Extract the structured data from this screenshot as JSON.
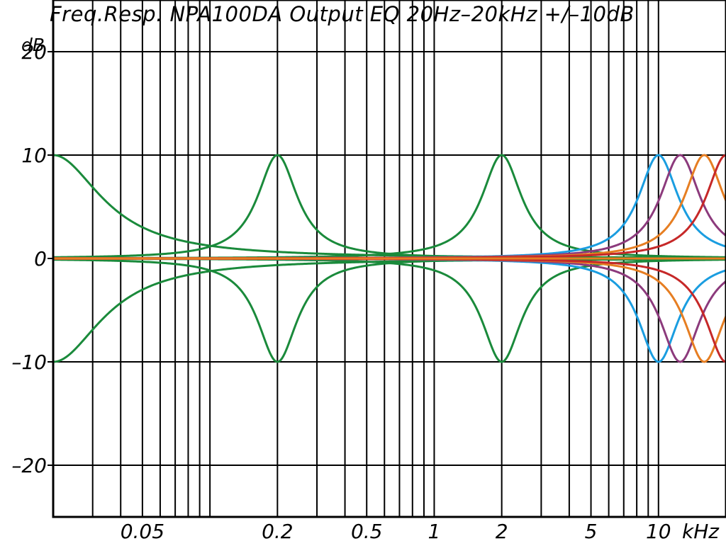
{
  "chart_data": {
    "type": "line",
    "title": "Freq.Resp. NPA100DA Output EQ 20Hz–20kHz +/–10dB",
    "ylabel": "dB",
    "xunit": "kHz",
    "x_scale": "log",
    "xlim": [
      0.02,
      20
    ],
    "ylim": [
      -25,
      25
    ],
    "grid": true,
    "y_ticks": [
      {
        "value": 20,
        "label": "20"
      },
      {
        "value": 10,
        "label": "10"
      },
      {
        "value": 0,
        "label": "0"
      },
      {
        "value": -10,
        "label": "–10"
      },
      {
        "value": -20,
        "label": "–20"
      }
    ],
    "x_ticks": [
      {
        "value": 0.05,
        "label": "0.05"
      },
      {
        "value": 0.2,
        "label": "0.2"
      },
      {
        "value": 0.5,
        "label": "0.5"
      },
      {
        "value": 1,
        "label": "1"
      },
      {
        "value": 2,
        "label": "2"
      },
      {
        "value": 5,
        "label": "5"
      },
      {
        "value": 10,
        "label": "10"
      }
    ],
    "colors": {
      "grid": "#000000",
      "green": "#1a8a3b",
      "blue": "#1a9de0",
      "purple": "#8c3a7c",
      "orange": "#e67e22",
      "red": "#c62828"
    },
    "series": [
      {
        "filter": "low-shelf",
        "fc_khz": 0.02,
        "gain_db": 10,
        "color": "#1a8a3b"
      },
      {
        "filter": "low-shelf",
        "fc_khz": 0.02,
        "gain_db": -10,
        "color": "#1a8a3b"
      },
      {
        "filter": "peak",
        "fc_khz": 0.2,
        "gain_db": 10,
        "color": "#1a8a3b"
      },
      {
        "filter": "peak",
        "fc_khz": 0.2,
        "gain_db": -10,
        "color": "#1a8a3b"
      },
      {
        "filter": "peak",
        "fc_khz": 2,
        "gain_db": 10,
        "color": "#1a8a3b"
      },
      {
        "filter": "peak",
        "fc_khz": 2,
        "gain_db": -10,
        "color": "#1a8a3b"
      },
      {
        "filter": "peak",
        "fc_khz": 10,
        "gain_db": 10,
        "color": "#1a9de0"
      },
      {
        "filter": "peak",
        "fc_khz": 10,
        "gain_db": -10,
        "color": "#1a9de0"
      },
      {
        "filter": "peak",
        "fc_khz": 12.5,
        "gain_db": 10,
        "color": "#8c3a7c"
      },
      {
        "filter": "peak",
        "fc_khz": 12.5,
        "gain_db": -10,
        "color": "#8c3a7c"
      },
      {
        "filter": "peak",
        "fc_khz": 16,
        "gain_db": 10,
        "color": "#e67e22"
      },
      {
        "filter": "peak",
        "fc_khz": 16,
        "gain_db": -10,
        "color": "#e67e22"
      },
      {
        "filter": "peak",
        "fc_khz": 20,
        "gain_db": 10,
        "color": "#c62828"
      },
      {
        "filter": "peak",
        "fc_khz": 20,
        "gain_db": -10,
        "color": "#c62828"
      },
      {
        "filter": "flat",
        "fc_khz": 1,
        "gain_db": 0,
        "color": "#e67e22"
      }
    ]
  }
}
